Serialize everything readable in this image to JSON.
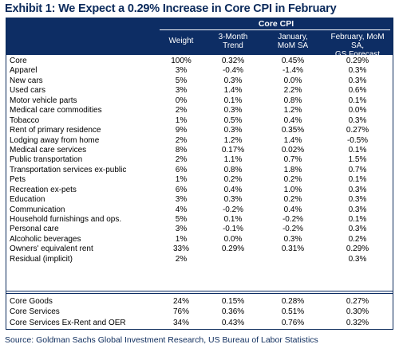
{
  "title": "Exhibit 1: We Expect a 0.29% Increase in Core CPI in February",
  "header": {
    "group_label": "Core CPI",
    "columns": {
      "weight": "Weight",
      "trend_line1": "3-Month",
      "trend_line2": "Trend",
      "jan_line1": "January,",
      "jan_line2": "MoM SA",
      "feb_line1": "February, MoM SA,",
      "feb_line2": "GS Forecast"
    }
  },
  "rows": [
    {
      "label": "Core",
      "weight": "100%",
      "trend": "0.32%",
      "jan": "0.45%",
      "feb": "0.29%"
    },
    {
      "label": "Apparel",
      "weight": "3%",
      "trend": "-0.4%",
      "jan": "-1.4%",
      "feb": "0.3%"
    },
    {
      "label": "New cars",
      "weight": "5%",
      "trend": "0.3%",
      "jan": "0.0%",
      "feb": "0.3%"
    },
    {
      "label": "Used cars",
      "weight": "3%",
      "trend": "1.4%",
      "jan": "2.2%",
      "feb": "0.6%"
    },
    {
      "label": "Motor vehicle parts",
      "weight": "0%",
      "trend": "0.1%",
      "jan": "0.8%",
      "feb": "0.1%"
    },
    {
      "label": "Medical care commodities",
      "weight": "2%",
      "trend": "0.3%",
      "jan": "1.2%",
      "feb": "0.0%"
    },
    {
      "label": "Tobacco",
      "weight": "1%",
      "trend": "0.5%",
      "jan": "0.4%",
      "feb": "0.3%"
    },
    {
      "label": "Rent of primary residence",
      "weight": "9%",
      "trend": "0.3%",
      "jan": "0.35%",
      "feb": "0.27%"
    },
    {
      "label": "Lodging away from home",
      "weight": "2%",
      "trend": "1.2%",
      "jan": "1.4%",
      "feb": "-0.5%"
    },
    {
      "label": "Medical care services",
      "weight": "8%",
      "trend": "0.17%",
      "jan": "0.02%",
      "feb": "0.1%"
    },
    {
      "label": "Public transportation",
      "weight": "2%",
      "trend": "1.1%",
      "jan": "0.7%",
      "feb": "1.5%"
    },
    {
      "label": "Transportation services ex-public",
      "weight": "6%",
      "trend": "0.8%",
      "jan": "1.8%",
      "feb": "0.7%"
    },
    {
      "label": "Pets",
      "weight": "1%",
      "trend": "0.2%",
      "jan": "0.2%",
      "feb": "0.1%"
    },
    {
      "label": "Recreation ex-pets",
      "weight": "6%",
      "trend": "0.4%",
      "jan": "1.0%",
      "feb": "0.3%"
    },
    {
      "label": "Education",
      "weight": "3%",
      "trend": "0.3%",
      "jan": "0.2%",
      "feb": "0.3%"
    },
    {
      "label": "Communication",
      "weight": "4%",
      "trend": "-0.2%",
      "jan": "0.4%",
      "feb": "0.3%"
    },
    {
      "label": "Household furnishings and ops.",
      "weight": "5%",
      "trend": "0.1%",
      "jan": "-0.2%",
      "feb": "0.1%"
    },
    {
      "label": "Personal care",
      "weight": "3%",
      "trend": "-0.1%",
      "jan": "-0.2%",
      "feb": "0.3%"
    },
    {
      "label": "Alcoholic beverages",
      "weight": "1%",
      "trend": "0.0%",
      "jan": "0.3%",
      "feb": "0.2%"
    },
    {
      "label": "Owners' equivalent rent",
      "weight": "33%",
      "trend": "0.29%",
      "jan": "0.31%",
      "feb": "0.29%"
    },
    {
      "label": "Residual (implicit)",
      "weight": "2%",
      "trend": "",
      "jan": "",
      "feb": "0.3%"
    }
  ],
  "summary_rows": [
    {
      "label": "Core Goods",
      "weight": "24%",
      "trend": "0.15%",
      "jan": "0.28%",
      "feb": "0.27%"
    },
    {
      "label": "Core Services",
      "weight": "76%",
      "trend": "0.36%",
      "jan": "0.51%",
      "feb": "0.30%"
    },
    {
      "label": "Core Services Ex-Rent and OER",
      "weight": "34%",
      "trend": "0.43%",
      "jan": "0.76%",
      "feb": "0.32%"
    }
  ],
  "source": "Source: Goldman Sachs Global Investment Research, US Bureau of Labor Statistics",
  "colors": {
    "header_bg": "#0d2d64",
    "title_text": "#0b2a5b"
  }
}
